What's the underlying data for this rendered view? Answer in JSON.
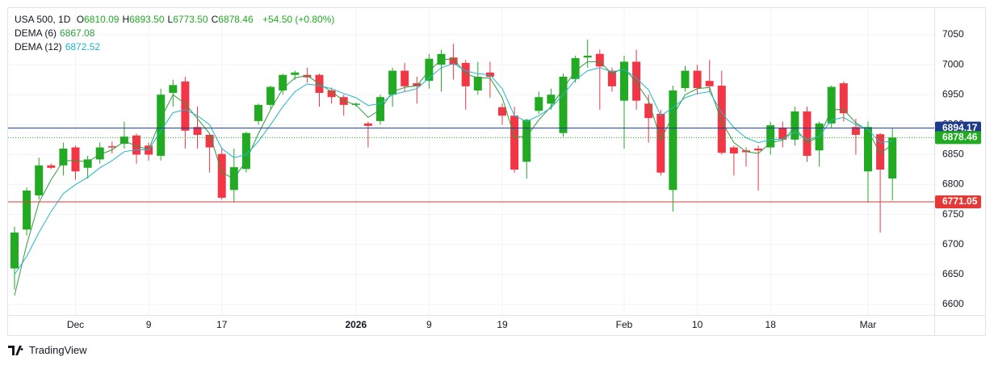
{
  "chart_data": {
    "type": "candlestick",
    "symbol": "USA 500, 1D",
    "ohlc_labels": [
      "O",
      "H",
      "L",
      "C"
    ],
    "last": [
      6810.09,
      6893.5,
      6773.5,
      6878.46
    ],
    "last_labels": [
      "6810.09",
      "6893.50",
      "6773.50",
      "6878.46"
    ],
    "change": "+54.50 (+0.80%)",
    "categories": [
      null,
      null,
      null,
      null,
      null,
      "Dec",
      null,
      null,
      null,
      null,
      null,
      "9",
      null,
      null,
      null,
      null,
      null,
      "17",
      null,
      null,
      null,
      null,
      null,
      null,
      null,
      null,
      null,
      null,
      "2026",
      null,
      null,
      null,
      null,
      null,
      "9",
      null,
      null,
      null,
      null,
      null,
      "19",
      null,
      null,
      null,
      null,
      null,
      null,
      null,
      null,
      null,
      "Feb",
      null,
      null,
      null,
      null,
      null,
      "10",
      null,
      null,
      null,
      null,
      null,
      "18",
      null,
      null,
      null,
      null,
      null,
      null,
      null,
      "Mar",
      null,
      null
    ],
    "open": [
      6660,
      6725,
      6782,
      6832,
      6832,
      6862,
      6828,
      6842,
      6864,
      6868,
      6882,
      6865,
      6848,
      6953,
      6972,
      6896,
      6883,
      6851,
      6791,
      6826,
      6906,
      6933,
      6957,
      6983,
      6983,
      6983,
      6957,
      6946,
      6933,
      6902,
      6906,
      6950,
      6990,
      6969,
      6973,
      7000,
      7012,
      7003,
      6957,
      6987,
      6929,
      6915,
      6838,
      6923,
      6935,
      6886,
      6976,
      7012,
      7018,
      6990,
      6940,
      7005,
      6935,
      6918,
      6791,
      6961,
      6990,
      6973,
      6965,
      6862,
      6857,
      6860,
      6862,
      6895,
      6875,
      6922,
      6857,
      6902,
      6969,
      6896,
      6822,
      6884,
      6810.09
    ],
    "high": [
      6730,
      6795,
      6845,
      6835,
      6870,
      6865,
      6848,
      6870,
      6872,
      6905,
      6885,
      6870,
      6960,
      6975,
      6980,
      6930,
      6885,
      6862,
      6860,
      6888,
      6935,
      6965,
      6985,
      6990,
      6995,
      6985,
      6962,
      6950,
      6937,
      6905,
      6950,
      6995,
      7003,
      6980,
      7018,
      7025,
      7035,
      7008,
      7005,
      7005,
      6935,
      6930,
      6910,
      6955,
      6960,
      6985,
      7015,
      7042,
      7025,
      6995,
      7015,
      7025,
      6950,
      6925,
      6965,
      6998,
      7000,
      7008,
      6990,
      6865,
      6862,
      6865,
      6905,
      6905,
      6930,
      6930,
      6905,
      6965,
      6972,
      6910,
      6905,
      6886,
      6893.5
    ],
    "low": [
      6625,
      6715,
      6775,
      6826,
      6815,
      6808,
      6810,
      6835,
      6852,
      6860,
      6835,
      6840,
      6840,
      6930,
      6860,
      6860,
      6820,
      6775,
      6770,
      6820,
      6900,
      6925,
      6950,
      6975,
      6970,
      6930,
      6935,
      6915,
      6930,
      6862,
      6900,
      6930,
      6955,
      6935,
      6960,
      6955,
      6975,
      6925,
      6950,
      6945,
      6900,
      6820,
      6810,
      6918,
      6925,
      6880,
      6970,
      6995,
      6925,
      6955,
      6860,
      6925,
      6870,
      6815,
      6755,
      6955,
      6950,
      6955,
      6850,
      6815,
      6830,
      6790,
      6850,
      6862,
      6865,
      6838,
      6830,
      6895,
      6905,
      6850,
      6770,
      6720,
      6773.5
    ],
    "close": [
      6720,
      6790,
      6832,
      6828,
      6860,
      6822,
      6842,
      6862,
      6862,
      6880,
      6850,
      6850,
      6950,
      6966,
      6890,
      6883,
      6862,
      6778,
      6829,
      6886,
      6933,
      6963,
      6983,
      6987,
      6979,
      6953,
      6946,
      6933,
      6935,
      6898,
      6946,
      6990,
      6964,
      6964,
      7010,
      7018,
      7000,
      6964,
      6980,
      6980,
      6915,
      6825,
      6908,
      6946,
      6950,
      6980,
      7011,
      7015,
      6997,
      6964,
      7005,
      6940,
      6911,
      6820,
      6957,
      6990,
      6961,
      6964,
      6853,
      6852,
      6854,
      6857,
      6899,
      6875,
      6922,
      6848,
      6902,
      6963,
      6919,
      6883,
      6896,
      6825,
      6878.46
    ],
    "up_color": "#22ab22",
    "down_color": "#f23645",
    "series": [
      {
        "name": "DEMA (6)",
        "color": "#2e9e3a",
        "values": [
          6615,
          6700,
          6770,
          6808,
          6840,
          6840,
          6838,
          6850,
          6858,
          6872,
          6865,
          6858,
          6910,
          6950,
          6935,
          6910,
          6885,
          6820,
          6810,
          6840,
          6885,
          6925,
          6960,
          6978,
          6982,
          6968,
          6955,
          6940,
          6933,
          6912,
          6925,
          6955,
          6962,
          6965,
          6990,
          7008,
          7010,
          6985,
          6978,
          6978,
          6945,
          6880,
          6880,
          6908,
          6930,
          6960,
          6990,
          7005,
          7005,
          6985,
          6995,
          6970,
          6940,
          6875,
          6915,
          6950,
          6960,
          6962,
          6905,
          6870,
          6855,
          6852,
          6870,
          6874,
          6895,
          6870,
          6880,
          6925,
          6925,
          6903,
          6890,
          6852,
          6867.08
        ]
      },
      {
        "name": "DEMA (12)",
        "color": "#22b5c9",
        "values": [
          6650,
          6680,
          6720,
          6755,
          6785,
          6800,
          6812,
          6828,
          6840,
          6855,
          6858,
          6858,
          6890,
          6920,
          6925,
          6915,
          6900,
          6860,
          6845,
          6850,
          6872,
          6900,
          6930,
          6955,
          6968,
          6965,
          6960,
          6952,
          6945,
          6932,
          6935,
          6950,
          6955,
          6960,
          6978,
          6995,
          7002,
          6990,
          6985,
          6983,
          6960,
          6915,
          6905,
          6915,
          6928,
          6950,
          6975,
          6990,
          6995,
          6988,
          6992,
          6978,
          6958,
          6915,
          6928,
          6945,
          6952,
          6955,
          6920,
          6895,
          6878,
          6870,
          6875,
          6876,
          6888,
          6875,
          6880,
          6908,
          6912,
          6900,
          6892,
          6870,
          6872.52
        ]
      }
    ],
    "price_lines": [
      {
        "value": 6894.17,
        "color": "#1e3a8a",
        "style": "solid"
      },
      {
        "value": 6878.46,
        "color": "#22ab22",
        "style": "dotted"
      },
      {
        "value": 6771.05,
        "color": "#e53935",
        "style": "solid"
      }
    ],
    "ylim": [
      6582.5,
      7094.5
    ],
    "yticks": [
      6600,
      6650,
      6700,
      6750,
      6800,
      6850,
      6900,
      6950,
      7000,
      7050
    ],
    "grid": true
  },
  "branding": "TradingView"
}
